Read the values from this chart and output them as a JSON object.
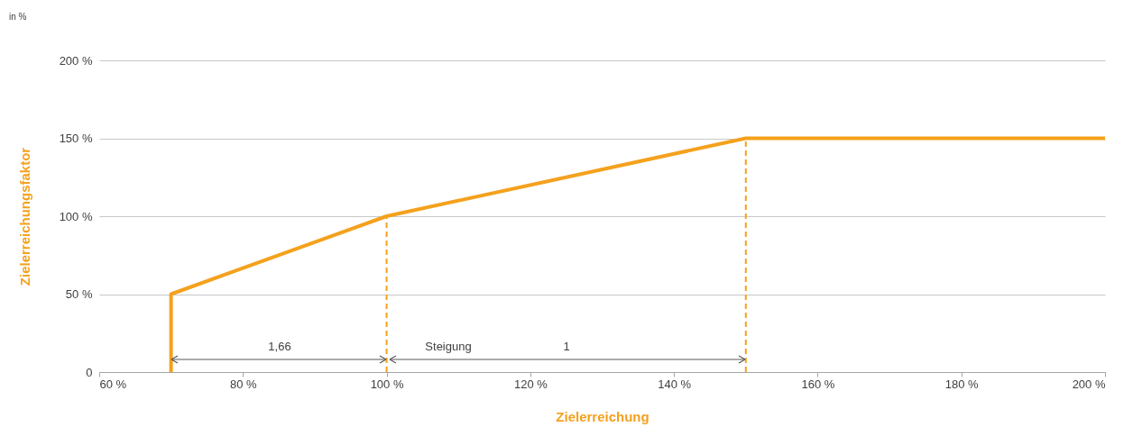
{
  "chart_data": {
    "type": "line",
    "xlabel": "Zielerreichung",
    "ylabel": "Zielerreichungsfaktor",
    "xlim": [
      60,
      200
    ],
    "ylim": [
      0,
      200
    ],
    "xticks": [
      {
        "value": 60,
        "label": "60 %"
      },
      {
        "value": 80,
        "label": "80 %"
      },
      {
        "value": 100,
        "label": "100 %"
      },
      {
        "value": 120,
        "label": "120 %"
      },
      {
        "value": 140,
        "label": "140 %"
      },
      {
        "value": 160,
        "label": "160 %"
      },
      {
        "value": 180,
        "label": "180 %"
      },
      {
        "value": 200,
        "label": "200 %"
      }
    ],
    "yticks": [
      0,
      {
        "value": 50,
        "label": "50 %"
      },
      {
        "value": 100,
        "label": "100 %"
      },
      {
        "value": 150,
        "label": "150 %"
      },
      {
        "value": 200,
        "label": "200 %"
      }
    ],
    "grid": "y",
    "marker": "none",
    "series": [
      {
        "color": "#f4a11d",
        "x": [
          70,
          70,
          100,
          150,
          200
        ],
        "values": [
          0,
          50,
          100,
          150,
          150
        ],
        "line_style": "solid"
      },
      {
        "color": "#f4a11d",
        "x": [
          100,
          100
        ],
        "values": [
          0,
          100
        ],
        "line_style": "dashed"
      },
      {
        "color": "#f4a11d",
        "x": [
          150,
          150
        ],
        "values": [
          0,
          150
        ],
        "line_style": "dashed"
      }
    ],
    "annotations": [
      "in %",
      "1,66",
      "Steigung",
      "1"
    ]
  }
}
